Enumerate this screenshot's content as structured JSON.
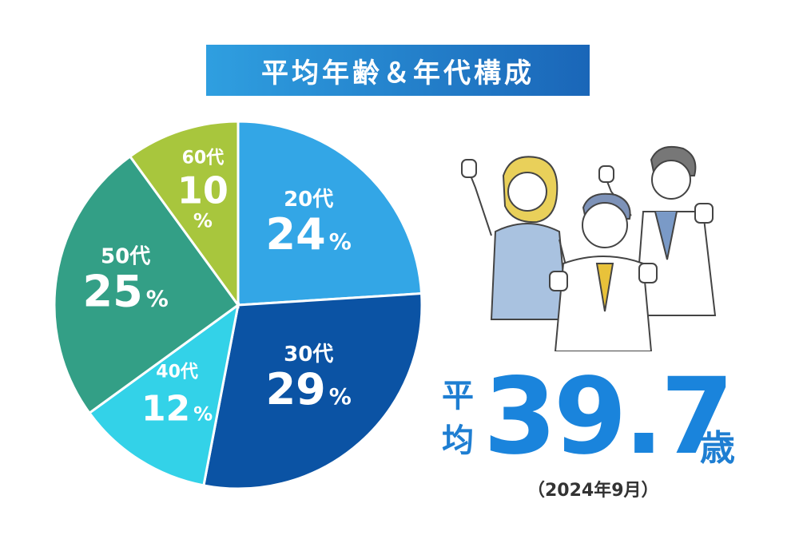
{
  "title": "平均年齢＆年代構成",
  "chart_data": {
    "type": "pie",
    "unit": "%",
    "slices": [
      {
        "label": "20代",
        "value": 24,
        "color": "#33a6e6"
      },
      {
        "label": "30代",
        "value": 29,
        "color": "#0b53a4"
      },
      {
        "label": "40代",
        "value": 12,
        "color": "#33d2e8"
      },
      {
        "label": "50代",
        "value": 25,
        "color": "#339f86"
      },
      {
        "label": "60代",
        "value": 10,
        "color": "#a8c63d"
      }
    ]
  },
  "average": {
    "label_top": "平",
    "label_bottom": "均",
    "value": "39.7",
    "unit": "歳",
    "date": "（2024年9月）"
  },
  "illustration": {
    "icon": "cheering-business-people-illustration"
  }
}
